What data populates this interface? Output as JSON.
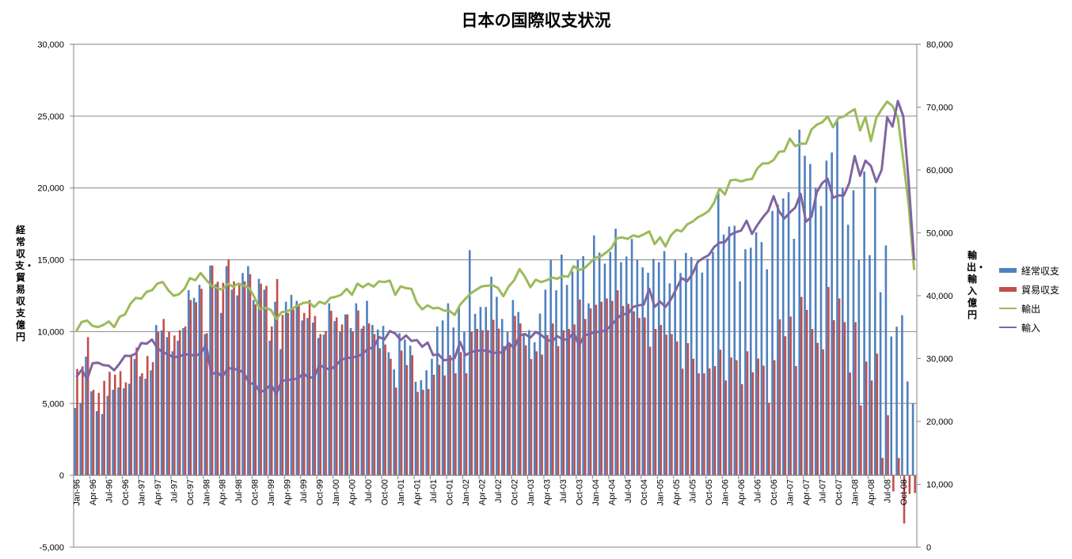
{
  "chart_data": {
    "type": "bar+line",
    "title": "日本の国際収支状況",
    "ylabel": "経常収支・貿易収支　億円",
    "y2label": "輸出・輸入　億円",
    "ylim": [
      -5000,
      30000
    ],
    "y2lim": [
      0,
      80000
    ],
    "yticks": [
      "30,000",
      "25,000",
      "20,000",
      "15,000",
      "10,000",
      "5,000",
      "0",
      "-5,000"
    ],
    "y2ticks": [
      "80,000",
      "70,000",
      "60,000",
      "50,000",
      "40,000",
      "30,000",
      "20,000",
      "10,000",
      "0"
    ],
    "grid": true,
    "legend_position": "right",
    "categories": [
      "Jan-96",
      "Feb-96",
      "Mar-96",
      "Apr-96",
      "May-96",
      "Jun-96",
      "Jul-96",
      "Aug-96",
      "Sep-96",
      "Oct-96",
      "Nov-96",
      "Dec-96",
      "Jan-97",
      "Feb-97",
      "Mar-97",
      "Apr-97",
      "May-97",
      "Jun-97",
      "Jul-97",
      "Aug-97",
      "Sep-97",
      "Oct-97",
      "Nov-97",
      "Dec-97",
      "Jan-98",
      "Feb-98",
      "Mar-98",
      "Apr-98",
      "May-98",
      "Jun-98",
      "Jul-98",
      "Aug-98",
      "Sep-98",
      "Oct-98",
      "Nov-98",
      "Dec-98",
      "Jan-99",
      "Feb-99",
      "Mar-99",
      "Apr-99",
      "May-99",
      "Jun-99",
      "Jul-99",
      "Aug-99",
      "Sep-99",
      "Oct-99",
      "Nov-99",
      "Dec-99",
      "Jan-00",
      "Feb-00",
      "Mar-00",
      "Apr-00",
      "May-00",
      "Jun-00",
      "Jul-00",
      "Aug-00",
      "Sep-00",
      "Oct-00",
      "Nov-00",
      "Dec-00",
      "Jan-01",
      "Feb-01",
      "Mar-01",
      "Apr-01",
      "May-01",
      "Jun-01",
      "Jul-01",
      "Aug-01",
      "Sep-01",
      "Oct-01",
      "Nov-01",
      "Dec-01",
      "Jan-02",
      "Feb-02",
      "Mar-02",
      "Apr-02",
      "May-02",
      "Jun-02",
      "Jul-02",
      "Aug-02",
      "Sep-02",
      "Oct-02",
      "Nov-02",
      "Dec-02",
      "Jan-03",
      "Feb-03",
      "Mar-03",
      "Apr-03",
      "May-03",
      "Jun-03",
      "Jul-03",
      "Aug-03",
      "Sep-03",
      "Oct-03",
      "Nov-03",
      "Dec-03",
      "Jan-04",
      "Feb-04",
      "Mar-04",
      "Apr-04",
      "May-04",
      "Jun-04",
      "Jul-04",
      "Aug-04",
      "Sep-04",
      "Oct-04",
      "Nov-04",
      "Dec-04",
      "Jan-05",
      "Feb-05",
      "Mar-05",
      "Apr-05",
      "May-05",
      "Jun-05",
      "Jul-05",
      "Aug-05",
      "Sep-05",
      "Oct-05",
      "Nov-05",
      "Dec-05",
      "Jan-06",
      "Feb-06",
      "Mar-06",
      "Apr-06",
      "May-06",
      "Jun-06",
      "Jul-06",
      "Aug-06",
      "Sep-06",
      "Oct-06",
      "Nov-06",
      "Dec-06",
      "Jan-07",
      "Feb-07",
      "Mar-07",
      "Apr-07",
      "May-07",
      "Jun-07",
      "Jul-07",
      "Aug-07",
      "Sep-07",
      "Oct-07",
      "Nov-07",
      "Dec-07",
      "Jan-08",
      "Feb-08",
      "Mar-08",
      "Apr-08",
      "May-08",
      "Jun-08",
      "Jul-08",
      "Aug-08",
      "Sep-08",
      "Oct-08",
      "Nov-08",
      "Dec-08"
    ],
    "series": [
      {
        "name": "経常収支",
        "type": "bar",
        "axis": "left",
        "color": "#4F81BD",
        "values": [
          4680,
          5040,
          8260,
          5840,
          4470,
          4260,
          5530,
          5950,
          6110,
          6050,
          6370,
          8090,
          6890,
          6720,
          7310,
          10460,
          10080,
          9620,
          8630,
          9370,
          10250,
          12880,
          12350,
          13250,
          9830,
          14600,
          13300,
          11300,
          14560,
          12920,
          12520,
          14080,
          14560,
          12200,
          13680,
          12920,
          9370,
          12080,
          8780,
          12080,
          12560,
          12140,
          10780,
          10950,
          10630,
          9560,
          9790,
          11970,
          10730,
          10000,
          11200,
          10250,
          11970,
          10210,
          12140,
          10460,
          10150,
          10400,
          8570,
          7370,
          9890,
          9450,
          9030,
          6510,
          6620,
          7310,
          8110,
          10360,
          10780,
          11970,
          10290,
          11720,
          9980,
          15670,
          11240,
          11720,
          11720,
          13820,
          12420,
          10880,
          9980,
          12200,
          11370,
          9890,
          10100,
          9260,
          11260,
          12920,
          15000,
          12880,
          15360,
          13250,
          14180,
          15000,
          15250,
          11970,
          16700,
          15500,
          14730,
          15550,
          17160,
          14830,
          15230,
          16450,
          15000,
          14470,
          14100,
          15060,
          14830,
          15610,
          13360,
          15000,
          14080,
          15480,
          15190,
          14660,
          14110,
          15090,
          15550,
          19660,
          16760,
          17310,
          17370,
          13490,
          15730,
          15840,
          16920,
          16230,
          14340,
          18400,
          18860,
          19270,
          19700,
          16460,
          24060,
          22240,
          21670,
          20000,
          18750,
          21900,
          22470,
          24790,
          20000,
          17440,
          19840,
          14980,
          21140,
          15320,
          20070,
          12740,
          16000,
          9660,
          10340,
          11140,
          6530,
          5000
        ]
      },
      {
        "name": "貿易収支",
        "type": "bar",
        "axis": "left",
        "color": "#C0504D",
        "values": [
          7400,
          7580,
          9620,
          5950,
          5740,
          6580,
          7200,
          7000,
          7250,
          6470,
          8260,
          8890,
          7100,
          8300,
          7880,
          9980,
          10880,
          9980,
          9730,
          10100,
          10360,
          12200,
          12040,
          12980,
          9890,
          14600,
          13470,
          13400,
          15020,
          13500,
          13250,
          13500,
          14000,
          11890,
          13340,
          13190,
          10360,
          13660,
          11160,
          11300,
          11550,
          11870,
          11300,
          12200,
          11090,
          9830,
          10040,
          11450,
          10990,
          10500,
          11200,
          10000,
          11470,
          10400,
          10570,
          9830,
          8840,
          9100,
          8110,
          6110,
          8680,
          7670,
          8360,
          5800,
          5950,
          6010,
          7000,
          7690,
          6950,
          8360,
          7100,
          8570,
          7100,
          9980,
          10190,
          10100,
          10100,
          10820,
          10210,
          8990,
          9100,
          11090,
          10570,
          9050,
          8090,
          8630,
          8400,
          9770,
          10570,
          8990,
          10100,
          10190,
          10500,
          12240,
          10880,
          11620,
          11870,
          12080,
          12310,
          12140,
          12880,
          11790,
          11930,
          11410,
          10950,
          10990,
          8950,
          10190,
          10460,
          9790,
          9830,
          9310,
          7420,
          9200,
          8110,
          7100,
          7100,
          7440,
          7600,
          8740,
          6600,
          8200,
          8010,
          6350,
          8630,
          7170,
          8130,
          7630,
          5050,
          8010,
          10860,
          9680,
          11050,
          7600,
          12420,
          11510,
          10180,
          9220,
          8770,
          13110,
          10800,
          12310,
          10660,
          7150,
          10660,
          4860,
          7920,
          6600,
          8470,
          1210,
          4180,
          -1120,
          1210,
          -3360,
          -1300,
          -1230
        ]
      },
      {
        "name": "輸出",
        "type": "line",
        "axis": "right",
        "color": "#9BBB59",
        "values": [
          34380,
          35820,
          36050,
          35200,
          35010,
          35340,
          35910,
          35010,
          36640,
          37030,
          38700,
          39660,
          39520,
          40620,
          40870,
          41920,
          42170,
          40870,
          40000,
          40230,
          41100,
          42790,
          42450,
          43610,
          42540,
          41580,
          41250,
          40960,
          41920,
          41440,
          41920,
          41580,
          41210,
          39660,
          37830,
          38080,
          37740,
          36300,
          37390,
          37510,
          37990,
          38470,
          38860,
          38950,
          38220,
          39040,
          38700,
          39660,
          39820,
          40140,
          41100,
          40140,
          41920,
          41350,
          41920,
          41440,
          42290,
          42170,
          42400,
          40140,
          41490,
          41210,
          41100,
          38860,
          37830,
          38470,
          37990,
          38080,
          37650,
          37600,
          36940,
          38560,
          39520,
          40390,
          40960,
          41490,
          41580,
          41660,
          41250,
          39910,
          41490,
          42450,
          44230,
          43020,
          41350,
          42540,
          42170,
          42450,
          42880,
          42700,
          43130,
          43020,
          44710,
          44090,
          44370,
          45190,
          46060,
          46240,
          46860,
          47590,
          49120,
          49280,
          49030,
          49600,
          49370,
          49760,
          50240,
          48210,
          49280,
          47840,
          49600,
          50470,
          50240,
          51340,
          51770,
          52480,
          52900,
          53490,
          54800,
          57040,
          56100,
          58350,
          58450,
          58190,
          58450,
          58560,
          60280,
          61060,
          61060,
          61580,
          62890,
          62990,
          64980,
          63780,
          64190,
          64190,
          66440,
          67220,
          67590,
          68520,
          66800,
          68260,
          68520,
          69150,
          69670,
          66280,
          68410,
          64610,
          68260,
          69670,
          70870,
          70190,
          68260,
          61580,
          54280,
          44100
        ]
      },
      {
        "name": "輸入",
        "type": "line",
        "axis": "right",
        "color": "#8064A2",
        "values": [
          27040,
          28230,
          26700,
          29240,
          29350,
          28960,
          28870,
          28140,
          29190,
          30450,
          30400,
          30790,
          32460,
          32370,
          33030,
          31640,
          31020,
          30630,
          30200,
          30310,
          30680,
          30630,
          30450,
          30790,
          32230,
          27430,
          27910,
          27040,
          28480,
          28390,
          28230,
          27750,
          26080,
          25990,
          24640,
          25030,
          25900,
          24300,
          26470,
          26560,
          26700,
          26790,
          27660,
          26950,
          27040,
          29010,
          28480,
          28270,
          28870,
          29830,
          30060,
          30200,
          30310,
          30790,
          31590,
          31750,
          33420,
          33030,
          34380,
          33990,
          32940,
          33670,
          32800,
          32940,
          31890,
          32550,
          30540,
          30680,
          29740,
          29830,
          30060,
          32660,
          30540,
          31020,
          31270,
          31270,
          31270,
          30930,
          30930,
          31020,
          32460,
          31640,
          33670,
          33900,
          33330,
          34240,
          33760,
          33030,
          32710,
          33580,
          33030,
          33030,
          34150,
          32070,
          33670,
          33900,
          34240,
          34240,
          34510,
          35340,
          36300,
          37120,
          37030,
          38220,
          38470,
          38610,
          41100,
          38220,
          39040,
          38220,
          39410,
          41100,
          42790,
          42290,
          43500,
          45410,
          46000,
          46450,
          47750,
          48430,
          48530,
          49680,
          50100,
          50360,
          51930,
          49840,
          51250,
          52450,
          53490,
          55840,
          53440,
          52290,
          53230,
          54020,
          56210,
          51770,
          52550,
          56470,
          57930,
          58610,
          55580,
          55950,
          55950,
          57930,
          62210,
          59080,
          61480,
          60640,
          58090,
          60020,
          68370,
          66910,
          70980,
          68530,
          57930,
          45670
        ]
      }
    ]
  }
}
